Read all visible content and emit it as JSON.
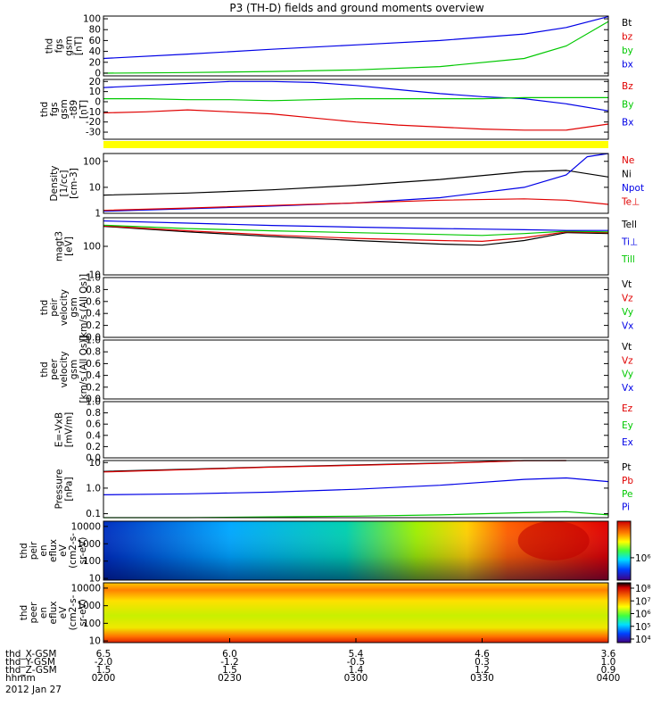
{
  "title": "P3 (TH-D) fields and ground moments overview",
  "date": "2012 Jan 27",
  "colors": {
    "black": "#000000",
    "red": "#e00000",
    "green": "#00c800",
    "blue": "#0000e6",
    "yellow": "#ffff00"
  },
  "chart_data": {
    "type": "line",
    "x_range": [
      0,
      120
    ],
    "panels": [
      {
        "id": "fgs_gsm",
        "ylabel": [
          "thd",
          "fgs",
          "gsm",
          "[nT]"
        ],
        "yscale": "linear",
        "ylim": [
          -5,
          105
        ],
        "ticks": [
          {
            "v": 100,
            "label": "100"
          },
          {
            "v": 80,
            "label": "80"
          },
          {
            "v": 60,
            "label": "60"
          },
          {
            "v": 40,
            "label": "40"
          },
          {
            "v": 20,
            "label": "20"
          },
          {
            "v": 0,
            "label": "0"
          }
        ],
        "legend": [
          {
            "name": "Bt",
            "color": "black"
          },
          {
            "name": "bz",
            "color": "red"
          },
          {
            "name": "by",
            "color": "green"
          },
          {
            "name": "bx",
            "color": "blue"
          }
        ],
        "series": [
          {
            "name": "bx",
            "color": "blue",
            "x": [
              0,
              20,
              40,
              60,
              80,
              100,
              110,
              120
            ],
            "y": [
              27,
              35,
              44,
              52,
              60,
              72,
              84,
              104
            ]
          },
          {
            "name": "by",
            "color": "green",
            "x": [
              0,
              20,
              40,
              60,
              80,
              100,
              110,
              120
            ],
            "y": [
              0,
              1,
              3,
              6,
              12,
              27,
              50,
              95
            ]
          }
        ]
      },
      {
        "id": "fgs_gsm_t89",
        "ylabel": [
          "thd",
          "fgs",
          "gsm",
          "-t89",
          "[nT]"
        ],
        "yscale": "linear",
        "ylim": [
          -37,
          22
        ],
        "ticks": [
          {
            "v": 20,
            "label": "20"
          },
          {
            "v": 10,
            "label": "10"
          },
          {
            "v": 0,
            "label": "0"
          },
          {
            "v": -10,
            "label": "-10"
          },
          {
            "v": -20,
            "label": "-20"
          },
          {
            "v": -30,
            "label": "-30"
          }
        ],
        "legend": [
          {
            "name": "Bz",
            "color": "red"
          },
          {
            "name": "By",
            "color": "green"
          },
          {
            "name": "Bx",
            "color": "blue"
          }
        ],
        "series": [
          {
            "name": "Bx",
            "color": "blue",
            "x": [
              0,
              10,
              20,
              30,
              40,
              50,
              60,
              70,
              80,
              90,
              100,
              110,
              120
            ],
            "y": [
              14,
              16,
              18,
              20,
              20,
              19,
              16,
              12,
              8,
              5,
              3,
              -2,
              -9
            ]
          },
          {
            "name": "By",
            "color": "green",
            "x": [
              0,
              10,
              20,
              30,
              40,
              50,
              60,
              70,
              80,
              90,
              100,
              110,
              120
            ],
            "y": [
              3,
              3,
              2,
              2,
              1,
              2,
              3,
              3,
              3,
              3,
              4,
              4,
              4
            ]
          },
          {
            "name": "Bz",
            "color": "red",
            "x": [
              0,
              10,
              20,
              30,
              40,
              50,
              60,
              70,
              80,
              90,
              100,
              110,
              120
            ],
            "y": [
              -11,
              -10,
              -8,
              -10,
              -12,
              -16,
              -20,
              -23,
              -25,
              -27,
              -28,
              -28,
              -22
            ]
          }
        ]
      },
      {
        "id": "density",
        "ylabel": [
          "Density",
          "[1/cc]",
          "[cm-3]"
        ],
        "yscale": "log",
        "ylim": [
          1,
          200
        ],
        "ticks": [
          {
            "v": 100,
            "label": "100"
          },
          {
            "v": 10,
            "label": "10"
          },
          {
            "v": 1,
            "label": "1"
          }
        ],
        "legend": [
          {
            "name": "Ne",
            "color": "red"
          },
          {
            "name": "Ni",
            "color": "black"
          },
          {
            "name": "Npot",
            "color": "blue"
          },
          {
            "name": "Te⊥",
            "color": "red"
          }
        ],
        "series": [
          {
            "name": "Ni",
            "color": "black",
            "x": [
              0,
              20,
              40,
              60,
              80,
              100,
              110,
              120
            ],
            "y": [
              5,
              6,
              8,
              12,
              20,
              40,
              45,
              25
            ]
          },
          {
            "name": "Npot",
            "color": "blue",
            "x": [
              0,
              20,
              40,
              60,
              80,
              100,
              110,
              115,
              120
            ],
            "y": [
              1.2,
              1.5,
              1.9,
              2.5,
              4,
              10,
              30,
              150,
              240
            ]
          },
          {
            "name": "Ne",
            "color": "red",
            "x": [
              0,
              20,
              40,
              60,
              80,
              100,
              110,
              120
            ],
            "y": [
              1.3,
              1.6,
              2,
              2.5,
              3.2,
              3.6,
              3.2,
              2.2
            ]
          }
        ]
      },
      {
        "id": "temperature",
        "ylabel": [
          "magt3",
          "[eV]"
        ],
        "yscale": "log",
        "ylim": [
          10,
          1000
        ],
        "ticks": [
          {
            "v": 100,
            "label": "100"
          },
          {
            "v": 10,
            "label": "10"
          }
        ],
        "legend": [
          {
            "name": "Tell",
            "color": "black"
          },
          {
            "name": "Ti⊥",
            "color": "blue"
          },
          {
            "name": "Till",
            "color": "green"
          }
        ],
        "series": [
          {
            "name": "Tell",
            "color": "black",
            "x": [
              0,
              20,
              40,
              60,
              80,
              90,
              100,
              110,
              120
            ],
            "y": [
              500,
              320,
              220,
              160,
              120,
              110,
              160,
              300,
              280
            ]
          },
          {
            "name": "Te⊥",
            "color": "red",
            "x": [
              0,
              20,
              40,
              60,
              80,
              90,
              100,
              110,
              120
            ],
            "y": [
              520,
              350,
              250,
              190,
              160,
              150,
              200,
              320,
              300
            ]
          },
          {
            "name": "Till",
            "color": "green",
            "x": [
              0,
              20,
              40,
              60,
              80,
              90,
              100,
              110,
              120
            ],
            "y": [
              550,
              420,
              350,
              300,
              260,
              240,
              280,
              340,
              320
            ]
          },
          {
            "name": "Ti⊥",
            "color": "blue",
            "x": [
              0,
              20,
              40,
              60,
              80,
              90,
              100,
              110,
              120
            ],
            "y": [
              780,
              650,
              540,
              470,
              420,
              400,
              380,
              360,
              360
            ]
          }
        ]
      },
      {
        "id": "peir_velocity",
        "ylabel": [
          "thd",
          "peir",
          "velocity",
          "gsm",
          "[km/s (All Qs)]"
        ],
        "yscale": "linear",
        "ylim": [
          0,
          1
        ],
        "ticks": [
          {
            "v": 1.0,
            "label": "1.0"
          },
          {
            "v": 0.8,
            "label": "0.8"
          },
          {
            "v": 0.6,
            "label": "0.6"
          },
          {
            "v": 0.4,
            "label": "0.4"
          },
          {
            "v": 0.2,
            "label": "0.2"
          },
          {
            "v": 0.0,
            "label": "0.0"
          }
        ],
        "legend": [
          {
            "name": "Vt",
            "color": "black"
          },
          {
            "name": "Vz",
            "color": "red"
          },
          {
            "name": "Vy",
            "color": "green"
          },
          {
            "name": "Vx",
            "color": "blue"
          }
        ],
        "series": []
      },
      {
        "id": "peer_velocity",
        "ylabel": [
          "thd",
          "peer",
          "velocity",
          "gsm",
          "[km/s (All Qs)]"
        ],
        "yscale": "linear",
        "ylim": [
          0,
          1
        ],
        "ticks": [
          {
            "v": 1.0,
            "label": "1.0"
          },
          {
            "v": 0.8,
            "label": "0.8"
          },
          {
            "v": 0.6,
            "label": "0.6"
          },
          {
            "v": 0.4,
            "label": "0.4"
          },
          {
            "v": 0.2,
            "label": "0.2"
          },
          {
            "v": 0.0,
            "label": "0.0"
          }
        ],
        "legend": [
          {
            "name": "Vt",
            "color": "black"
          },
          {
            "name": "Vz",
            "color": "red"
          },
          {
            "name": "Vy",
            "color": "green"
          },
          {
            "name": "Vx",
            "color": "blue"
          }
        ],
        "series": []
      },
      {
        "id": "efield",
        "ylabel": [
          "E=-VxB",
          "[mV/m]"
        ],
        "yscale": "linear",
        "ylim": [
          0,
          1
        ],
        "ticks": [
          {
            "v": 1.0,
            "label": "1.0"
          },
          {
            "v": 0.8,
            "label": "0.8"
          },
          {
            "v": 0.6,
            "label": "0.6"
          },
          {
            "v": 0.4,
            "label": "0.4"
          },
          {
            "v": 0.2,
            "label": "0.2"
          },
          {
            "v": 0.0,
            "label": "0.0"
          }
        ],
        "legend": [
          {
            "name": "Ez",
            "color": "red"
          },
          {
            "name": "Ey",
            "color": "green"
          },
          {
            "name": "Ex",
            "color": "blue"
          }
        ],
        "series": []
      },
      {
        "id": "pressure",
        "ylabel": [
          "Pressure",
          "[nPa]"
        ],
        "yscale": "log",
        "ylim": [
          0.07,
          12
        ],
        "ticks": [
          {
            "v": 10,
            "label": "10"
          },
          {
            "v": 1,
            "label": "1.0"
          },
          {
            "v": 0.1,
            "label": "0.1"
          }
        ],
        "legend": [
          {
            "name": "Pt",
            "color": "black"
          },
          {
            "name": "Pb",
            "color": "red"
          },
          {
            "name": "Pe",
            "color": "green"
          },
          {
            "name": "Pi",
            "color": "blue"
          }
        ],
        "series": [
          {
            "name": "Pt",
            "color": "black",
            "x": [
              0,
              20,
              40,
              60,
              80,
              100,
              110
            ],
            "y": [
              4.5,
              5.5,
              6.8,
              8,
              9.5,
              12,
              13
            ]
          },
          {
            "name": "Pb",
            "color": "red",
            "x": [
              0,
              20,
              40,
              60,
              80,
              100,
              110
            ],
            "y": [
              4.3,
              5.3,
              6.6,
              7.8,
              9.3,
              11.8,
              12.8
            ]
          },
          {
            "name": "Pi",
            "color": "blue",
            "x": [
              0,
              20,
              40,
              60,
              80,
              100,
              110,
              120
            ],
            "y": [
              0.55,
              0.6,
              0.7,
              0.9,
              1.3,
              2.2,
              2.5,
              1.8
            ]
          },
          {
            "name": "Pe",
            "color": "green",
            "x": [
              0,
              20,
              40,
              60,
              80,
              100,
              110,
              120
            ],
            "y": [
              0.07,
              0.07,
              0.075,
              0.08,
              0.09,
              0.11,
              0.12,
              0.09
            ]
          }
        ]
      }
    ],
    "spectrograms": [
      {
        "id": "peir_en_eflux",
        "ylabel": [
          "thd",
          "peir",
          "en",
          "eflux",
          "eV",
          "(cm2-s-",
          "sr-eV)"
        ],
        "ylim": [
          8,
          20000
        ],
        "ticks": [
          {
            "v": 10000,
            "label": "10000"
          },
          {
            "v": 1000,
            "label": "1000"
          },
          {
            "v": 100,
            "label": "100"
          },
          {
            "v": 10,
            "label": "10"
          }
        ],
        "colorbar_ticks": [
          {
            "label": "10⁶"
          }
        ]
      },
      {
        "id": "peer_en_eflux",
        "ylabel": [
          "thd",
          "peer",
          "en",
          "eflux",
          "eV",
          "(cm2-s-",
          "sr-eV)"
        ],
        "ylim": [
          8,
          20000
        ],
        "ticks": [
          {
            "v": 10000,
            "label": "10000"
          },
          {
            "v": 1000,
            "label": "1000"
          },
          {
            "v": 100,
            "label": "100"
          },
          {
            "v": 10,
            "label": "10"
          }
        ],
        "colorbar_ticks": [
          {
            "label": "10⁸"
          },
          {
            "label": "10⁷"
          },
          {
            "label": "10⁶"
          },
          {
            "label": "10⁵"
          },
          {
            "label": "10⁴"
          }
        ]
      }
    ],
    "xaxis": {
      "row_labels": [
        "thd_X-GSM",
        "thd_Y-GSM",
        "thd_Z-GSM",
        "hhmm"
      ],
      "columns": [
        {
          "x": 0,
          "X": "6.5",
          "Y": "-2.0",
          "Z": "1.5",
          "time": "0200"
        },
        {
          "x": 30,
          "X": "6.0",
          "Y": "-1.2",
          "Z": "1.5",
          "time": "0230"
        },
        {
          "x": 60,
          "X": "5.4",
          "Y": "-0.5",
          "Z": "1.4",
          "time": "0300"
        },
        {
          "x": 90,
          "X": "4.6",
          "Y": "0.3",
          "Z": "1.2",
          "time": "0330"
        },
        {
          "x": 120,
          "X": "3.6",
          "Y": "1.0",
          "Z": "0.9",
          "time": "0400"
        }
      ]
    }
  }
}
